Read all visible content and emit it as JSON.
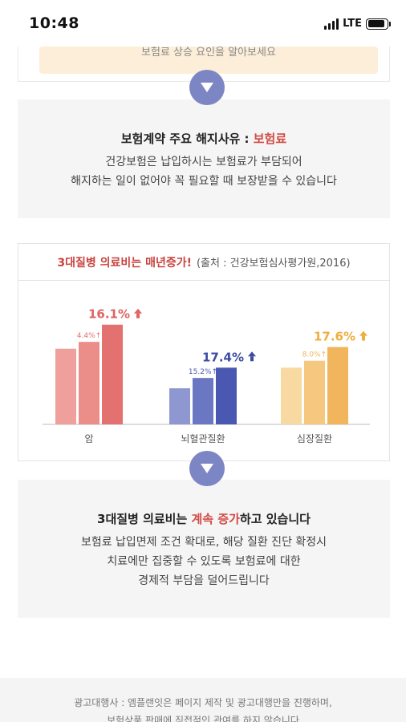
{
  "status_bar": {
    "time": "10:48",
    "network": "LTE",
    "battery_level": 0.9
  },
  "top_banner": {
    "text": "보험료 상승 요인을 알아보세요"
  },
  "section1": {
    "title_prefix": "보험계약 주요 해지사유 : ",
    "title_highlight": "보험료",
    "line1": "건강보험은 납입하시는 보험료가 부담되어",
    "line2": "해지하는 일이 없어야 꼭 필요할 때 보장받을 수 있습니다"
  },
  "chart_card": {
    "title": "3대질병 의료비는 매년증가!",
    "source": "(출처 : 건강보험심사평가원,2016)"
  },
  "chart_data": {
    "type": "bar",
    "categories": [
      "암",
      "뇌혈관질환",
      "심장질환"
    ],
    "series": [
      {
        "values": [
          44,
          48,
          58
        ]
      },
      {
        "values": [
          21,
          27,
          33
        ]
      },
      {
        "values": [
          33,
          37,
          45
        ]
      }
    ],
    "small_labels": [
      "4.4%",
      "15.2%",
      "8.0%"
    ],
    "big_labels": [
      "16.1%",
      "17.4%",
      "17.6%"
    ],
    "label_colors": [
      "#e06363",
      "#3b4ba3",
      "#eeae3c"
    ],
    "colors": {
      "cancer": [
        "#f0a09c",
        "#eb8e8a",
        "#e27170"
      ],
      "cerebro": [
        "#8e97d0",
        "#6b77c3",
        "#4b58b2"
      ],
      "cardiac": [
        "#f9d9a2",
        "#f6c77e",
        "#f0b55d"
      ]
    },
    "ylim": [
      0,
      70
    ]
  },
  "section2": {
    "title_prefix": "3대질병 의료비는 ",
    "title_highlight": "계속 증가",
    "title_suffix": "하고 있습니다",
    "line1": "보험료 납입면제 조건 확대로, 해당 질환 진단 확정시",
    "line2": "치료에만 집중할 수 있도록 보험료에 대한",
    "line3": "경제적 부담을 덜어드립니다"
  },
  "footer": {
    "line1": "광고대행사 : 엠플랜잇은 페이지 제작 및 광고대행만을 진행하며,",
    "line2": "보험상품 판매에 직접적인 관여를 하지 않습니다"
  }
}
